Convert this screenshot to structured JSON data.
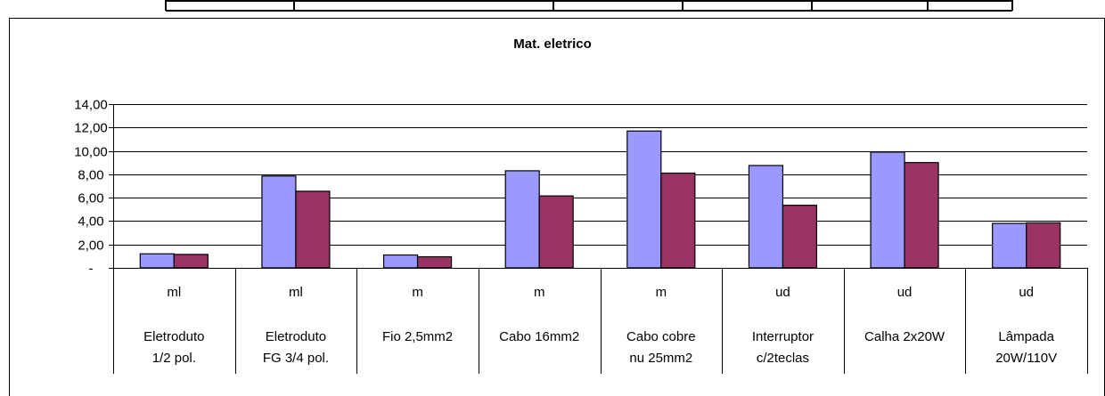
{
  "chart_data": {
    "type": "bar",
    "title": "Mat. eletrico",
    "categories": [
      {
        "unit": "ml",
        "label": [
          "Eletroduto",
          "1/2 pol."
        ]
      },
      {
        "unit": "ml",
        "label": [
          "Eletroduto",
          "FG 3/4 pol."
        ]
      },
      {
        "unit": "m",
        "label": [
          "Fio 2,5mm2"
        ]
      },
      {
        "unit": "m",
        "label": [
          "Cabo 16mm2"
        ]
      },
      {
        "unit": "m",
        "label": [
          "Cabo cobre",
          "nu 25mm2"
        ]
      },
      {
        "unit": "ud",
        "label": [
          "Interruptor",
          "c/2teclas"
        ]
      },
      {
        "unit": "ud",
        "label": [
          "Calha 2x20W"
        ]
      },
      {
        "unit": "ud",
        "label": [
          "Lâmpada",
          "20W/110V"
        ]
      }
    ],
    "series": [
      {
        "values": [
          1.2,
          7.85,
          1.1,
          8.3,
          11.7,
          8.75,
          9.9,
          3.8
        ]
      },
      {
        "values": [
          1.15,
          6.55,
          0.95,
          6.15,
          8.1,
          5.35,
          9.0,
          3.85
        ]
      }
    ],
    "colors": [
      "#9999ff",
      "#993366"
    ],
    "ylim": [
      0,
      14
    ],
    "yticks": [
      {
        "value": 0,
        "label": "-"
      },
      {
        "value": 2,
        "label": "2,00"
      },
      {
        "value": 4,
        "label": "4,00"
      },
      {
        "value": 6,
        "label": "6,00"
      },
      {
        "value": 8,
        "label": "8,00"
      },
      {
        "value": 10,
        "label": "10,00"
      },
      {
        "value": 12,
        "label": "12,00"
      },
      {
        "value": 14,
        "label": "14,00"
      }
    ],
    "grid": true,
    "legend": "none"
  }
}
